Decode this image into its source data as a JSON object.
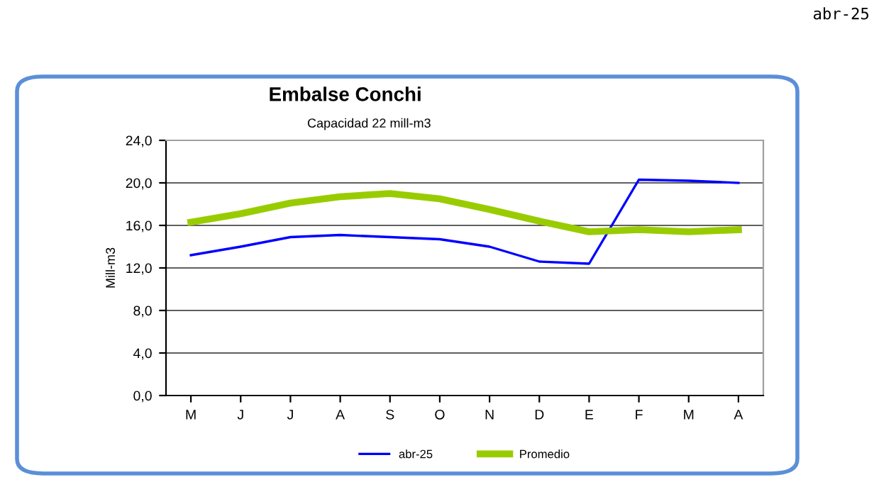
{
  "chart_data": {
    "type": "line",
    "title": "Embalse Conchi",
    "subtitle": "Capacidad 22 mill-m3",
    "ylabel": "Mill-m3",
    "annotations": [
      "abr-25"
    ],
    "categories": [
      "M",
      "J",
      "J",
      "A",
      "S",
      "O",
      "N",
      "D",
      "E",
      "F",
      "M",
      "A"
    ],
    "series": [
      {
        "name": "abr-25",
        "color": "#0000ff",
        "values": [
          13.2,
          14.0,
          14.9,
          15.1,
          14.9,
          14.7,
          14.0,
          12.6,
          12.4,
          20.3,
          20.2,
          20.0
        ]
      },
      {
        "name": "Promedio",
        "color": "#99cc00",
        "values": [
          16.3,
          17.1,
          18.1,
          18.7,
          19.0,
          18.5,
          17.5,
          16.4,
          15.4,
          15.6,
          15.4,
          15.6
        ]
      }
    ],
    "ylim": [
      0,
      24
    ],
    "yticks": [
      {
        "value": 0,
        "label": "0,0"
      },
      {
        "value": 4,
        "label": "4,0"
      },
      {
        "value": 8,
        "label": "8,0"
      },
      {
        "value": 12,
        "label": "12,0"
      },
      {
        "value": 16,
        "label": "16,0"
      },
      {
        "value": 20,
        "label": "20,0"
      },
      {
        "value": 24,
        "label": "24,0"
      }
    ],
    "grid": "y",
    "legend": "bottom",
    "marker": "none",
    "line_style": "solid"
  }
}
